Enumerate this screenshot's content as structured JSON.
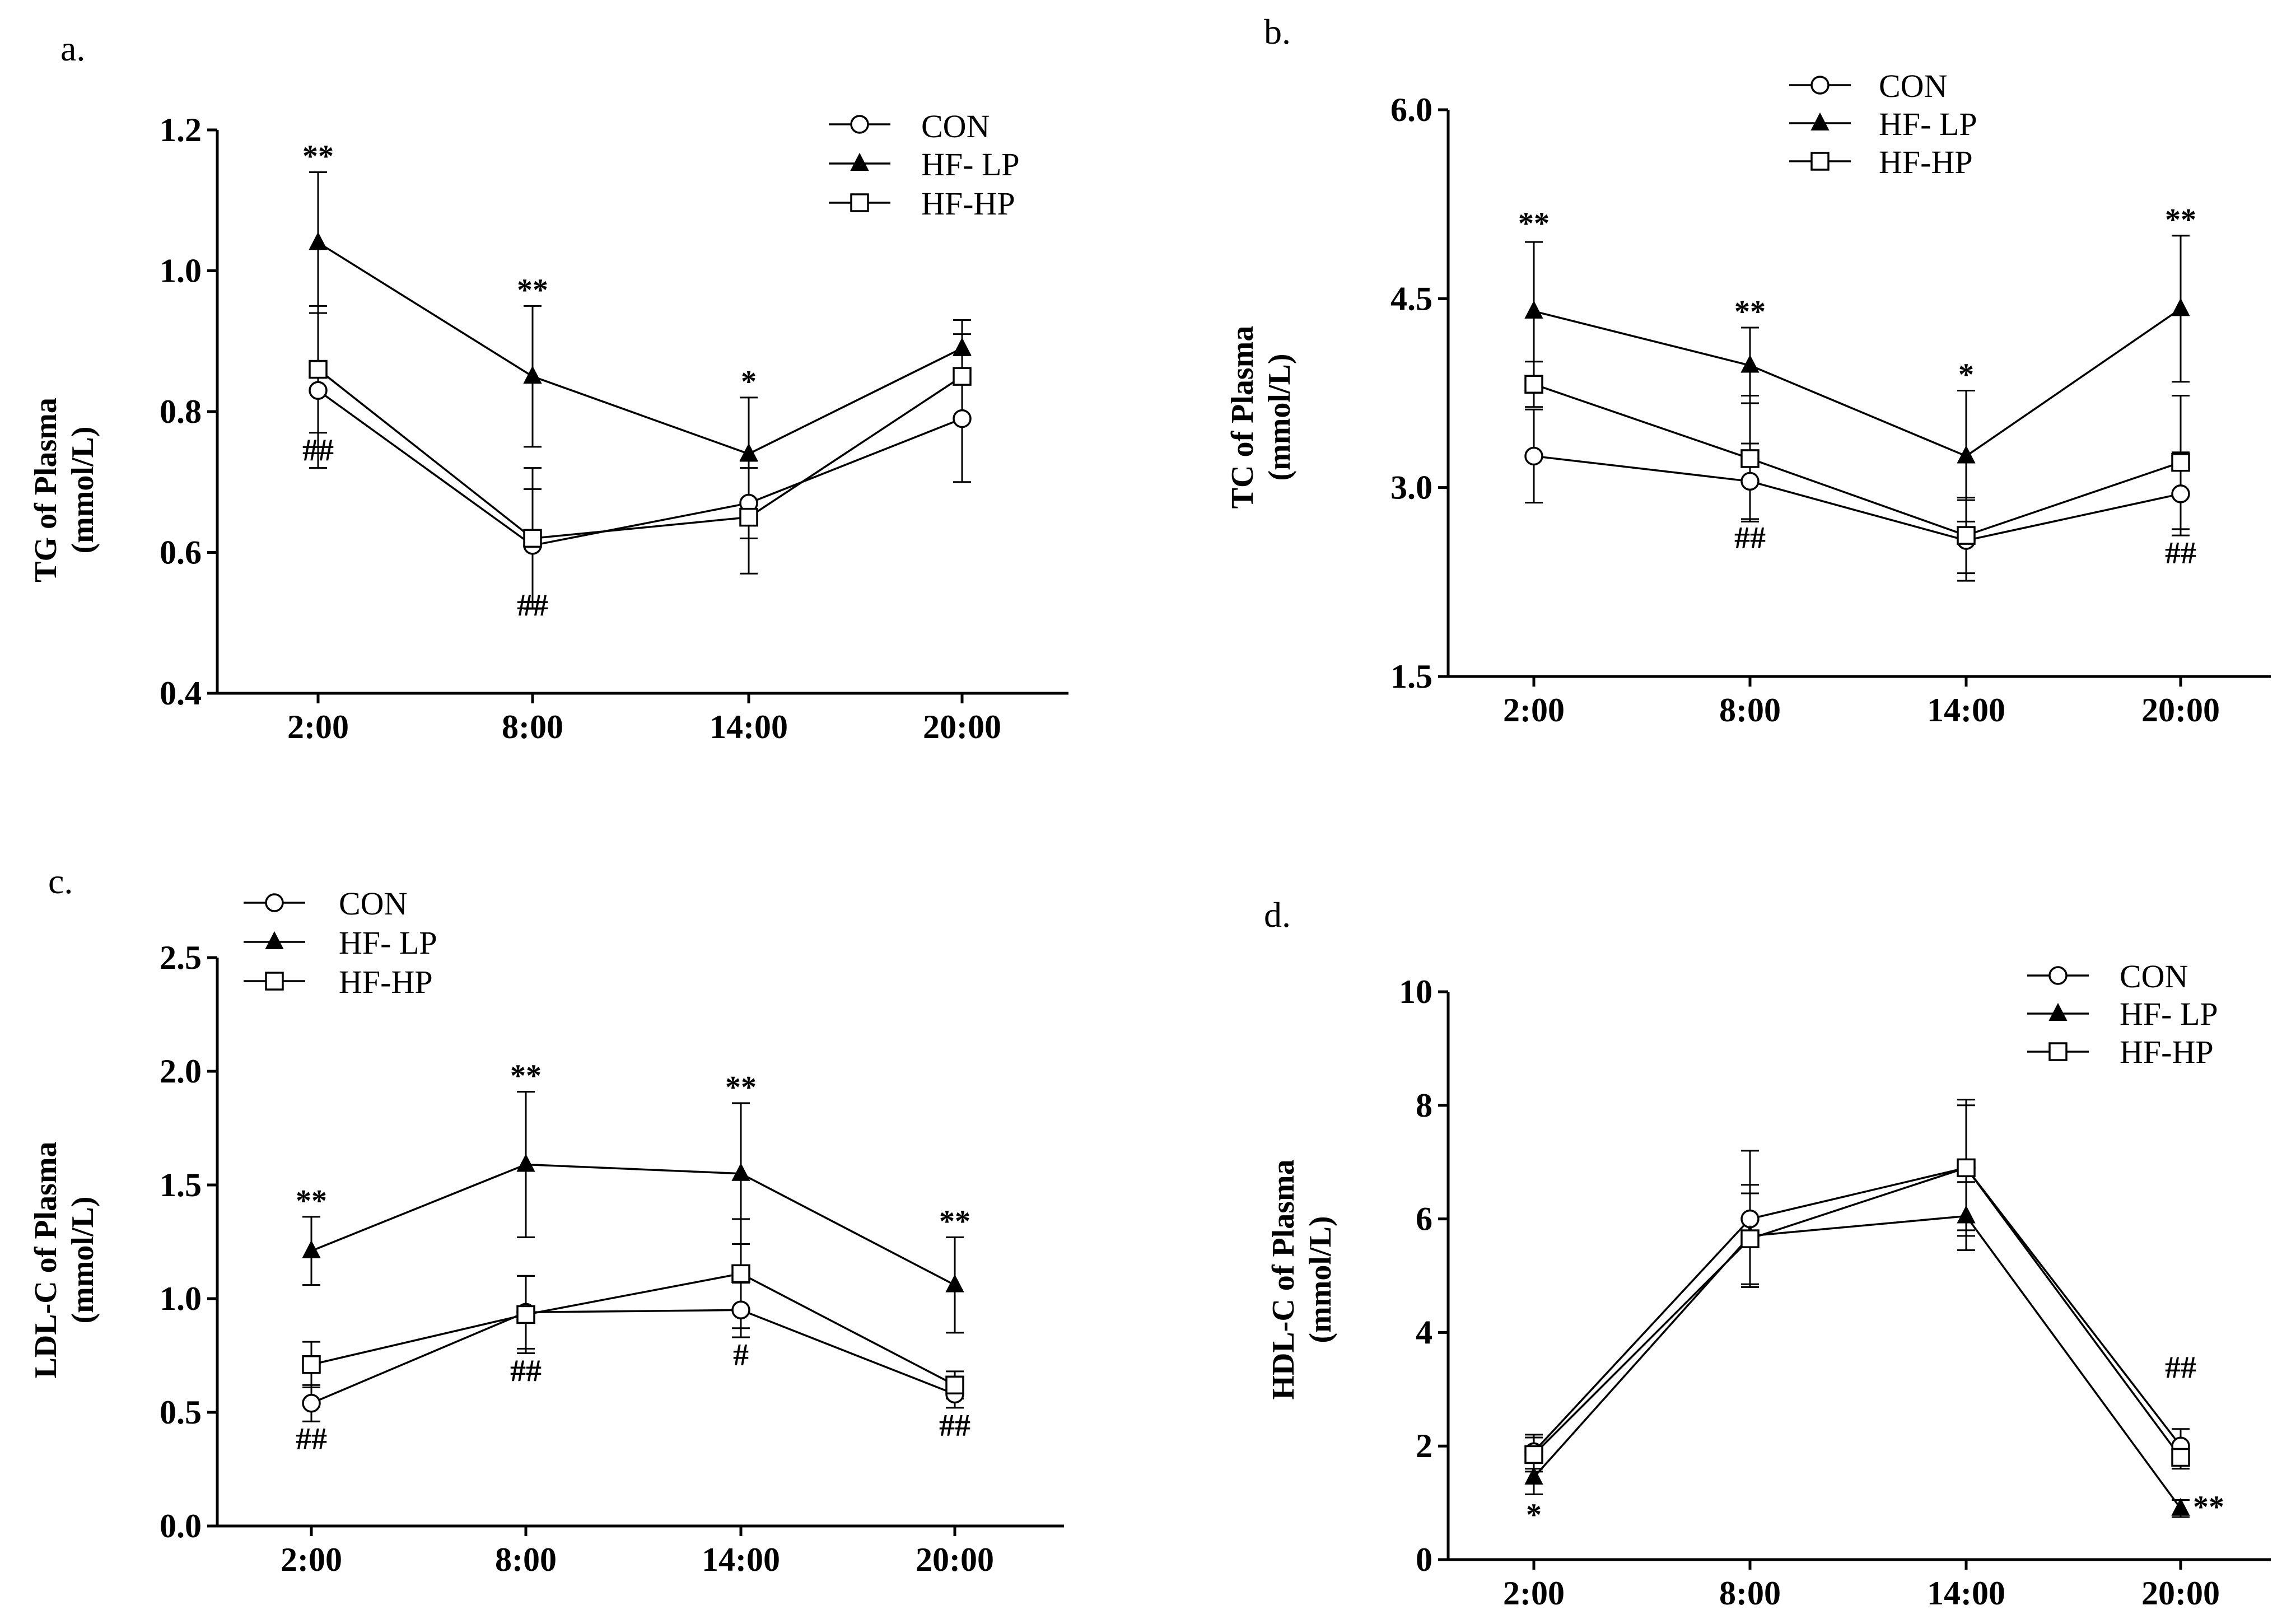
{
  "chart_data": [
    {
      "type": "line",
      "panel_label": "a.",
      "title": "",
      "xlabel": "",
      "ylabel_lines": [
        "TG of Plasma",
        "(mmol/L)"
      ],
      "categories": [
        "2:00",
        "8:00",
        "14:00",
        "20:00"
      ],
      "ylim": [
        0.4,
        1.2
      ],
      "yticks": [
        0.4,
        0.6,
        0.8,
        1.0,
        1.2
      ],
      "ytick_labels": [
        "0.4",
        "0.6",
        "0.8",
        "1.0",
        "1.2"
      ],
      "legend_position": "top-right",
      "series": [
        {
          "name": "CON",
          "marker": "circle",
          "values": [
            0.83,
            0.61,
            0.67,
            0.79
          ],
          "errors": [
            0.11,
            0.08,
            0.05,
            0.09
          ]
        },
        {
          "name": "HF- LP",
          "marker": "triangle",
          "values": [
            1.04,
            0.85,
            0.74,
            0.89
          ],
          "errors": [
            0.1,
            0.1,
            0.08,
            0.04
          ]
        },
        {
          "name": "HF-HP",
          "marker": "square",
          "values": [
            0.86,
            0.62,
            0.65,
            0.85
          ],
          "errors": [
            0.09,
            0.1,
            0.08,
            0.06
          ]
        }
      ],
      "annotations": [
        {
          "text": "**",
          "x": "2:00",
          "y": 1.14,
          "side": "above"
        },
        {
          "text": "##",
          "x": "2:00",
          "y": 0.77,
          "side": "below"
        },
        {
          "text": "**",
          "x": "8:00",
          "y": 0.95,
          "side": "above"
        },
        {
          "text": "##",
          "x": "8:00",
          "y": 0.55,
          "side": "below"
        },
        {
          "text": "*",
          "x": "14:00",
          "y": 0.82,
          "side": "above"
        }
      ]
    },
    {
      "type": "line",
      "panel_label": "b.",
      "title": "",
      "xlabel": "",
      "ylabel_lines": [
        "TC of Plasma",
        "(mmol/L)"
      ],
      "categories": [
        "2:00",
        "8:00",
        "14:00",
        "20:00"
      ],
      "ylim": [
        1.5,
        6.0
      ],
      "yticks": [
        1.5,
        3.0,
        4.5,
        6.0
      ],
      "ytick_labels": [
        "1.5",
        "3.0",
        "4.5",
        "6.0"
      ],
      "legend_position": "top-left",
      "series": [
        {
          "name": "CON",
          "marker": "circle",
          "values": [
            3.25,
            3.05,
            2.58,
            2.95
          ],
          "errors": [
            0.37,
            0.3,
            0.32,
            0.33
          ]
        },
        {
          "name": "HF- LP",
          "marker": "triangle",
          "values": [
            4.4,
            3.97,
            3.25,
            4.42
          ],
          "errors": [
            0.55,
            0.3,
            0.52,
            0.58
          ]
        },
        {
          "name": "HF-HP",
          "marker": "square",
          "values": [
            3.82,
            3.23,
            2.62,
            3.2
          ],
          "errors": [
            0.18,
            0.5,
            0.3,
            0.53
          ]
        }
      ],
      "annotations": [
        {
          "text": "**",
          "x": "2:00",
          "y": 4.97,
          "side": "above"
        },
        {
          "text": "**",
          "x": "8:00",
          "y": 4.27,
          "side": "above"
        },
        {
          "text": "##",
          "x": "8:00",
          "y": 2.74,
          "side": "below"
        },
        {
          "text": "*",
          "x": "14:00",
          "y": 3.77,
          "side": "above"
        },
        {
          "text": "**",
          "x": "20:00",
          "y": 5.0,
          "side": "above"
        },
        {
          "text": "##",
          "x": "20:00",
          "y": 2.62,
          "side": "below"
        }
      ]
    },
    {
      "type": "line",
      "panel_label": "c.",
      "title": "",
      "xlabel": "",
      "ylabel_lines": [
        "LDL-C of Plasma",
        "(mmol/L)"
      ],
      "categories": [
        "2:00",
        "8:00",
        "14:00",
        "20:00"
      ],
      "ylim": [
        0.0,
        2.5
      ],
      "yticks": [
        0.0,
        0.5,
        1.0,
        1.5,
        2.0,
        2.5
      ],
      "ytick_labels": [
        "0.0",
        "0.5",
        "1.0",
        "1.5",
        "2.0",
        "2.5"
      ],
      "legend_position": "top-left",
      "series": [
        {
          "name": "CON",
          "marker": "circle",
          "values": [
            0.54,
            0.94,
            0.95,
            0.58
          ],
          "errors": [
            0.08,
            0.16,
            0.12,
            0.06
          ]
        },
        {
          "name": "HF- LP",
          "marker": "triangle",
          "values": [
            1.21,
            1.59,
            1.55,
            1.06
          ],
          "errors": [
            0.15,
            0.32,
            0.31,
            0.21
          ]
        },
        {
          "name": "HF-HP",
          "marker": "square",
          "values": [
            0.71,
            0.93,
            1.11,
            0.62
          ],
          "errors": [
            0.1,
            0.17,
            0.24,
            0.06
          ]
        }
      ],
      "annotations": [
        {
          "text": "**",
          "x": "2:00",
          "y": 1.36,
          "side": "above"
        },
        {
          "text": "##",
          "x": "2:00",
          "y": 0.46,
          "side": "below"
        },
        {
          "text": "**",
          "x": "8:00",
          "y": 1.91,
          "side": "above"
        },
        {
          "text": "##",
          "x": "8:00",
          "y": 0.76,
          "side": "below"
        },
        {
          "text": "**",
          "x": "14:00",
          "y": 1.86,
          "side": "above"
        },
        {
          "text": "#",
          "x": "14:00",
          "y": 0.83,
          "side": "below"
        },
        {
          "text": "**",
          "x": "20:00",
          "y": 1.27,
          "side": "above"
        },
        {
          "text": "##",
          "x": "20:00",
          "y": 0.52,
          "side": "below"
        }
      ]
    },
    {
      "type": "line",
      "panel_label": "d.",
      "title": "",
      "xlabel": "",
      "ylabel_lines": [
        "HDL-C of Plasma",
        "(mmol/L)"
      ],
      "categories": [
        "2:00",
        "8:00",
        "14:00",
        "20:00"
      ],
      "ylim": [
        0,
        10
      ],
      "yticks": [
        0,
        2,
        4,
        6,
        8,
        10
      ],
      "ytick_labels": [
        "0",
        "2",
        "4",
        "6",
        "8",
        "10"
      ],
      "legend_position": "top-right",
      "series": [
        {
          "name": "CON",
          "marker": "circle",
          "values": [
            1.9,
            6.0,
            6.9,
            2.0
          ],
          "errors": [
            0.3,
            1.2,
            1.2,
            0.3
          ]
        },
        {
          "name": "HF- LP",
          "marker": "triangle",
          "values": [
            1.45,
            5.7,
            6.05,
            0.9
          ],
          "errors": [
            0.3,
            0.9,
            0.6,
            0.15
          ]
        },
        {
          "name": "HF-HP",
          "marker": "square",
          "values": [
            1.85,
            5.65,
            6.9,
            1.8
          ],
          "errors": [
            0.3,
            0.8,
            1.1,
            0.2
          ]
        }
      ],
      "annotations": [
        {
          "text": "*",
          "x": "2:00",
          "y": 1.1,
          "side": "below"
        },
        {
          "text": "##",
          "x": "20:00",
          "y": 3.1,
          "side": "above"
        },
        {
          "text": "**",
          "x": "20:00",
          "y": 1.0,
          "side": "right"
        }
      ]
    }
  ]
}
